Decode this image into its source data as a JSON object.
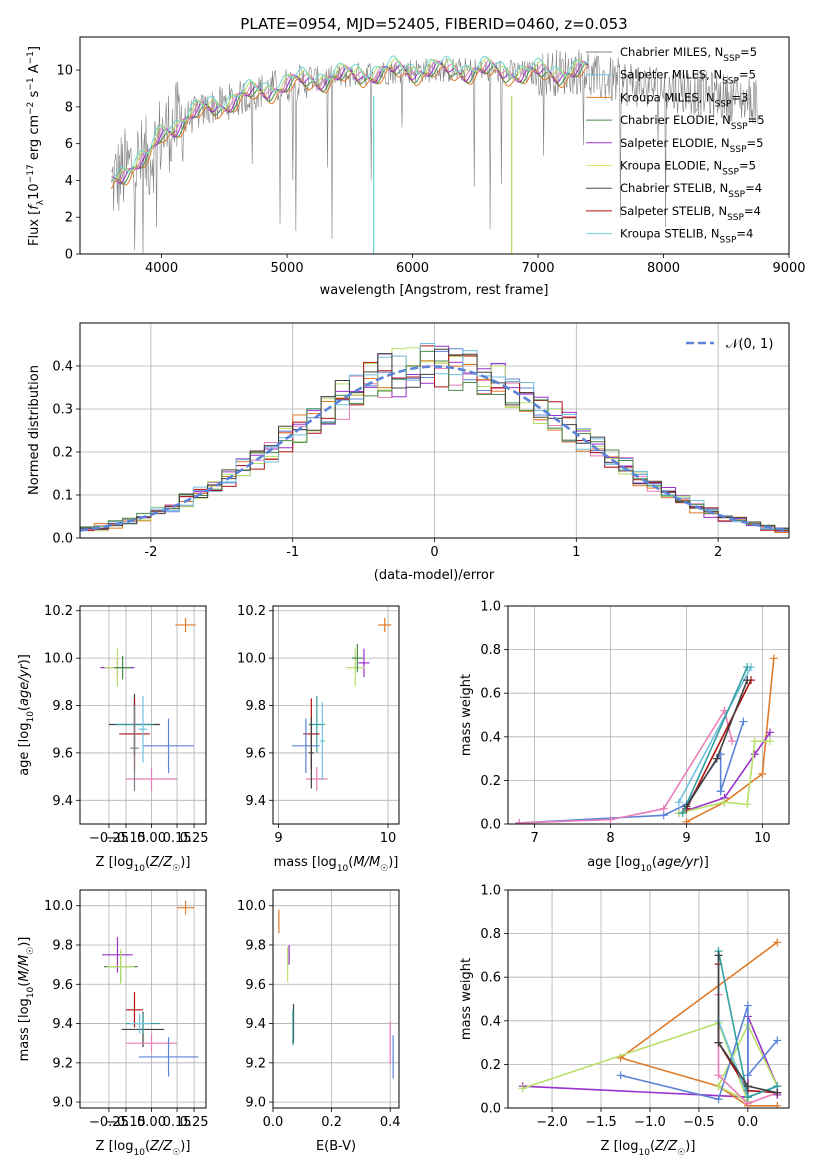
{
  "figure_title": "PLATE=0954, MJD=52405, FIBERID=0460, z=0.053",
  "colors": {
    "chabrier_miles": "#808080",
    "salpeter_miles": "#70c0e0",
    "kroupa_miles": "#e07b2a",
    "chabrier_elodie": "#4a8a4a",
    "salpeter_elodie": "#9932cc",
    "kroupa_elodie": "#e8e070",
    "chabrier_stelib": "#505050",
    "salpeter_stelib": "#b01010",
    "kroupa_stelib": "#70d8d0",
    "steelblue": "#5b84d8",
    "pink": "#e87fb8",
    "lime": "#b8e068",
    "teal": "#30a0a0",
    "dark": "#404040",
    "normal_curve": "#5b84d8"
  },
  "chart_data": [
    {
      "id": "spectrum",
      "type": "line",
      "title": "PLATE=0954, MJD=52405, FIBERID=0460, z=0.053",
      "xlabel": "wavelength [Angstrom, rest frame]",
      "ylabel": "Flux [f_λ10^-17 erg cm^-2 s^-1 A^-1]",
      "xlim": [
        3350,
        9000
      ],
      "ylim": [
        0,
        11.8
      ],
      "xticks": [
        4000,
        5000,
        6000,
        7000,
        8000,
        9000
      ],
      "yticks": [
        0,
        2,
        4,
        6,
        8,
        10
      ],
      "legend_position": "right",
      "legend": [
        {
          "label": "Chabrier MILES, N",
          "sub": "SSP",
          "suffix": "=5",
          "color": "#808080"
        },
        {
          "label": "Salpeter MILES, N",
          "sub": "SSP",
          "suffix": "=5",
          "color": "#70c0e0"
        },
        {
          "label": "Kroupa MILES, N",
          "sub": "SSP",
          "suffix": "=3",
          "color": "#e07b2a"
        },
        {
          "label": "Chabrier ELODIE, N",
          "sub": "SSP",
          "suffix": "=5",
          "color": "#4a8a4a"
        },
        {
          "label": "Salpeter ELODIE, N",
          "sub": "SSP",
          "suffix": "=5",
          "color": "#9932cc"
        },
        {
          "label": "Kroupa ELODIE, N",
          "sub": "SSP",
          "suffix": "=5",
          "color": "#e8e070"
        },
        {
          "label": "Chabrier STELIB, N",
          "sub": "SSP",
          "suffix": "=4",
          "color": "#505050"
        },
        {
          "label": "Salpeter STELIB, N",
          "sub": "SSP",
          "suffix": "=4",
          "color": "#b01010"
        },
        {
          "label": "Kroupa STELIB, N",
          "sub": "SSP",
          "suffix": "=4",
          "color": "#70d8d0"
        }
      ],
      "envelope": {
        "x": [
          3600,
          3700,
          3800,
          3900,
          4000,
          4200,
          4400,
          4600,
          4800,
          5000,
          5200,
          5400,
          5600,
          6000,
          6500,
          7000,
          7400
        ],
        "y": [
          3.8,
          4.5,
          5.0,
          5.2,
          6.5,
          7.4,
          8.0,
          8.4,
          8.9,
          9.2,
          9.5,
          9.6,
          9.8,
          10.0,
          10.0,
          9.8,
          10.0
        ]
      },
      "observed_extent": [
        3600,
        8750
      ],
      "miles_extent": [
        3600,
        7400
      ],
      "dips": [
        {
          "x": 5690,
          "y": 0,
          "color": "#70d8d0"
        },
        {
          "x": 6790,
          "y": 0,
          "color": "#b8e068"
        }
      ]
    },
    {
      "id": "residual_histogram",
      "type": "histogram",
      "xlabel": "(data-model)/error",
      "ylabel": "Normed distribution",
      "xlim": [
        -2.5,
        2.5
      ],
      "ylim": [
        0,
        0.5
      ],
      "xticks": [
        -2,
        -1,
        0,
        1,
        2
      ],
      "yticks": [
        0.0,
        0.1,
        0.2,
        0.3,
        0.4
      ],
      "grid": true,
      "legend": [
        {
          "label": "𝒩(0, 1)",
          "color": "#5b84d8",
          "style": "dashed"
        }
      ],
      "legend_position": "top-right",
      "bin_width": 0.1,
      "curve": "standard normal pdf"
    },
    {
      "id": "age_vs_Z",
      "type": "errorbar",
      "xlabel": "Z [log10(Z/Z☉)]",
      "ylabel": "age  [log10(age/yr)]",
      "xlim": [
        -0.42,
        0.32
      ],
      "ylim": [
        9.3,
        10.22
      ],
      "xticks": [
        -0.25,
        -0.15,
        0.0,
        0.15,
        0.25
      ],
      "xtick_labels": [
        "−0.25",
        "−0.15",
        "0.00",
        "0.15",
        "0.25"
      ],
      "yticks": [
        9.4,
        9.6,
        9.8,
        10.0,
        10.2
      ],
      "grid": true,
      "points": [
        {
          "x": 0.2,
          "y": 10.14,
          "xe": 0.12,
          "ye": 0.06,
          "color": "#e07b2a"
        },
        {
          "x": -0.2,
          "y": 9.96,
          "xe": 0.2,
          "ye": 0.08,
          "color": "#9932cc"
        },
        {
          "x": -0.2,
          "y": 9.96,
          "xe": 0.15,
          "ye": 0.16,
          "color": "#b8e068"
        },
        {
          "x": -0.17,
          "y": 9.96,
          "xe": 0.1,
          "ye": 0.1,
          "color": "#4a8a4a"
        },
        {
          "x": -0.1,
          "y": 9.72,
          "xe": 0.3,
          "ye": 0.26,
          "color": "#404040"
        },
        {
          "x": -0.1,
          "y": 9.72,
          "xe": 0.22,
          "ye": 0.2,
          "color": "#30a0a0"
        },
        {
          "x": -0.1,
          "y": 9.68,
          "xe": 0.18,
          "ye": 0.3,
          "color": "#b01010"
        },
        {
          "x": 0.1,
          "y": 9.63,
          "xe": 0.3,
          "ye": 0.23,
          "color": "#5b84d8"
        },
        {
          "x": 0.0,
          "y": 9.49,
          "xe": 0.3,
          "ye": 0.1,
          "color": "#e87fb8"
        },
        {
          "x": -0.1,
          "y": 9.62,
          "xe": 0.05,
          "ye": 0.36,
          "color": "#808080"
        },
        {
          "x": -0.05,
          "y": 9.7,
          "xe": 0.05,
          "ye": 0.28,
          "color": "#70c0e0"
        }
      ]
    },
    {
      "id": "age_vs_mass",
      "type": "errorbar",
      "xlabel": "mass [log10(M/M☉)]",
      "xlim": [
        8.95,
        10.1
      ],
      "ylim": [
        9.3,
        10.22
      ],
      "xticks": [
        9,
        10
      ],
      "yticks": [
        9.4,
        9.6,
        9.8,
        10.0,
        10.2
      ],
      "grid": true,
      "points": [
        {
          "x": 9.97,
          "y": 10.14,
          "xe": 0.12,
          "ye": 0.06,
          "color": "#e07b2a"
        },
        {
          "x": 9.78,
          "y": 9.98,
          "xe": 0.1,
          "ye": 0.12,
          "color": "#9932cc"
        },
        {
          "x": 9.7,
          "y": 9.96,
          "xe": 0.17,
          "ye": 0.16,
          "color": "#b8e068"
        },
        {
          "x": 9.72,
          "y": 10.0,
          "xe": 0.1,
          "ye": 0.12,
          "color": "#4a8a4a"
        },
        {
          "x": 9.35,
          "y": 9.72,
          "xe": 0.15,
          "ye": 0.24,
          "color": "#30a0a0"
        },
        {
          "x": 9.3,
          "y": 9.68,
          "xe": 0.15,
          "ye": 0.3,
          "color": "#b01010"
        },
        {
          "x": 9.25,
          "y": 9.63,
          "xe": 0.25,
          "ye": 0.23,
          "color": "#5b84d8"
        },
        {
          "x": 9.35,
          "y": 9.49,
          "xe": 0.2,
          "ye": 0.1,
          "color": "#e87fb8"
        },
        {
          "x": 9.3,
          "y": 9.6,
          "xe": 0.05,
          "ye": 0.3,
          "color": "#404040"
        },
        {
          "x": 9.4,
          "y": 9.65,
          "xe": 0.05,
          "ye": 0.33,
          "color": "#70c0e0"
        }
      ]
    },
    {
      "id": "mass_weight_vs_age",
      "type": "line",
      "xlabel": "age  [log10(age/yr)]",
      "ylabel": "mass weight",
      "xlim": [
        6.65,
        10.35
      ],
      "ylim": [
        0,
        1
      ],
      "xticks": [
        7,
        8,
        9,
        10
      ],
      "yticks": [
        0.0,
        0.2,
        0.4,
        0.6,
        0.8,
        1.0
      ],
      "grid": true,
      "series": [
        {
          "color": "#5b84d8",
          "x": [
            6.8,
            8.7,
            9.0,
            9.45,
            9.45,
            9.75,
            9.45
          ],
          "y": [
            0.005,
            0.04,
            0.09,
            0.32,
            0.15,
            0.47,
            0.15
          ]
        },
        {
          "color": "#e87fb8",
          "x": [
            6.8,
            8.0,
            8.7,
            9.5,
            9.6
          ],
          "y": [
            0.005,
            0.02,
            0.07,
            0.52,
            0.38
          ]
        },
        {
          "color": "#e07b2a",
          "x": [
            9.0,
            9.5,
            10.0,
            10.15
          ],
          "y": [
            0.01,
            0.1,
            0.23,
            0.76
          ]
        },
        {
          "color": "#9932cc",
          "x": [
            8.9,
            9.5,
            9.9,
            10.1
          ],
          "y": [
            0.05,
            0.12,
            0.32,
            0.42
          ]
        },
        {
          "color": "#b8e068",
          "x": [
            8.9,
            9.5,
            9.8,
            9.9,
            10.1
          ],
          "y": [
            0.05,
            0.1,
            0.09,
            0.38,
            0.38
          ]
        },
        {
          "color": "#b01010",
          "x": [
            9.0,
            9.85
          ],
          "y": [
            0.07,
            0.66
          ]
        },
        {
          "color": "#70c0e0",
          "x": [
            8.9,
            9.85
          ],
          "y": [
            0.1,
            0.72
          ]
        },
        {
          "color": "#30a0a0",
          "x": [
            8.95,
            9.8
          ],
          "y": [
            0.05,
            0.72
          ]
        },
        {
          "color": "#404040",
          "x": [
            9.0,
            9.4,
            9.8
          ],
          "y": [
            0.08,
            0.3,
            0.66
          ]
        }
      ]
    },
    {
      "id": "mass_vs_Z",
      "type": "errorbar",
      "xlabel": "Z [log10(Z/Z☉)]",
      "ylabel": "mass [log10(M/M☉)]",
      "xlim": [
        -0.42,
        0.32
      ],
      "ylim": [
        8.97,
        10.08
      ],
      "xticks": [
        -0.25,
        -0.15,
        0.0,
        0.15,
        0.25
      ],
      "xtick_labels": [
        "−0.25",
        "−0.15",
        "0.00",
        "0.15",
        "0.25"
      ],
      "yticks": [
        9.0,
        9.2,
        9.4,
        9.6,
        9.8,
        10.0
      ],
      "grid": true,
      "points": [
        {
          "x": 0.2,
          "y": 9.99,
          "xe": 0.1,
          "ye": 0.07,
          "color": "#e07b2a"
        },
        {
          "x": -0.2,
          "y": 9.75,
          "xe": 0.18,
          "ye": 0.18,
          "color": "#9932cc"
        },
        {
          "x": -0.18,
          "y": 9.69,
          "xe": 0.2,
          "ye": 0.16,
          "color": "#4a8a4a"
        },
        {
          "x": -0.18,
          "y": 9.69,
          "xe": 0.16,
          "ye": 0.18,
          "color": "#b8e068"
        },
        {
          "x": -0.1,
          "y": 9.47,
          "xe": 0.1,
          "ye": 0.18,
          "color": "#b01010"
        },
        {
          "x": -0.05,
          "y": 9.37,
          "xe": 0.25,
          "ye": 0.18,
          "color": "#404040"
        },
        {
          "x": -0.05,
          "y": 9.4,
          "xe": 0.2,
          "ye": 0.1,
          "color": "#30a0a0"
        },
        {
          "x": 0.0,
          "y": 9.3,
          "xe": 0.3,
          "ye": 0.1,
          "color": "#e87fb8"
        },
        {
          "x": 0.1,
          "y": 9.23,
          "xe": 0.35,
          "ye": 0.2,
          "color": "#5b84d8"
        },
        {
          "x": -0.07,
          "y": 9.4,
          "xe": 0.12,
          "ye": 0.1,
          "color": "#70c0e0"
        }
      ]
    },
    {
      "id": "mass_vs_EBV",
      "type": "errorbar",
      "xlabel": "E(B-V)",
      "xlim": [
        0,
        0.43
      ],
      "ylim": [
        8.97,
        10.08
      ],
      "xticks": [
        0.0,
        0.2,
        0.4
      ],
      "yticks": [
        9.0,
        9.2,
        9.4,
        9.6,
        9.8,
        10.0
      ],
      "grid": true,
      "points": [
        {
          "x": 0.02,
          "y": 9.92,
          "xe": 0,
          "ye": 0.12,
          "color": "#e07b2a"
        },
        {
          "x": 0.055,
          "y": 9.75,
          "xe": 0,
          "ye": 0.1,
          "color": "#9932cc"
        },
        {
          "x": 0.05,
          "y": 9.7,
          "xe": 0,
          "ye": 0.18,
          "color": "#b8e068"
        },
        {
          "x": 0.07,
          "y": 9.4,
          "xe": 0,
          "ye": 0.2,
          "color": "#404040"
        },
        {
          "x": 0.068,
          "y": 9.38,
          "xe": 0,
          "ye": 0.18,
          "color": "#30a0a0"
        },
        {
          "x": 0.4,
          "y": 9.3,
          "xe": 0,
          "ye": 0.22,
          "color": "#e87fb8"
        },
        {
          "x": 0.41,
          "y": 9.23,
          "xe": 0,
          "ye": 0.22,
          "color": "#5b84d8"
        }
      ]
    },
    {
      "id": "mass_weight_vs_Z",
      "type": "line",
      "xlabel": "Z [log10(Z/Z☉)]",
      "ylabel": "mass weight",
      "xlim": [
        -2.45,
        0.42
      ],
      "ylim": [
        0,
        1
      ],
      "xticks": [
        -2.0,
        -1.5,
        -1.0,
        -0.5,
        0.0
      ],
      "xtick_labels": [
        "−2.0",
        "−1.5",
        "−1.0",
        "−0.5",
        "0.0"
      ],
      "yticks": [
        0.0,
        0.2,
        0.4,
        0.6,
        0.8,
        1.0
      ],
      "grid": true,
      "series": [
        {
          "color": "#9932cc",
          "x": [
            -2.3,
            0.0,
            0.0,
            0.3,
            0.3
          ],
          "y": [
            0.1,
            0.05,
            0.42,
            0.1,
            0.06
          ]
        },
        {
          "color": "#e07b2a",
          "x": [
            0.3,
            -1.3,
            -0.3,
            0.0,
            0.3
          ],
          "y": [
            0.76,
            0.23,
            0.1,
            0.01,
            0.01
          ]
        },
        {
          "color": "#b8e068",
          "x": [
            -2.3,
            -0.3,
            0.0,
            -0.3,
            0.0,
            0.3
          ],
          "y": [
            0.09,
            0.39,
            0.03,
            0.1,
            0.38,
            0.1
          ]
        },
        {
          "color": "#5b84d8",
          "x": [
            -1.3,
            -0.3,
            0.0,
            0.0,
            0.3
          ],
          "y": [
            0.15,
            0.04,
            0.47,
            0.15,
            0.31
          ]
        },
        {
          "color": "#e87fb8",
          "x": [
            -0.3,
            -0.3,
            0.0,
            0.3
          ],
          "y": [
            0.52,
            0.15,
            0.02,
            0.07
          ]
        },
        {
          "color": "#b01010",
          "x": [
            -0.3,
            -0.3,
            0.0,
            0.3
          ],
          "y": [
            0.66,
            0.3,
            0.08,
            0.07
          ]
        },
        {
          "color": "#70c0e0",
          "x": [
            -0.3,
            -0.3,
            0.0,
            0.3
          ],
          "y": [
            0.72,
            0.4,
            0.05,
            0.1
          ]
        },
        {
          "color": "#30a0a0",
          "x": [
            -0.3,
            0.0,
            0.3
          ],
          "y": [
            0.72,
            0.05,
            0.1
          ]
        },
        {
          "color": "#404040",
          "x": [
            -0.3,
            -0.3,
            0.0,
            0.3
          ],
          "y": [
            0.7,
            0.3,
            0.1,
            0.07
          ]
        }
      ]
    }
  ]
}
